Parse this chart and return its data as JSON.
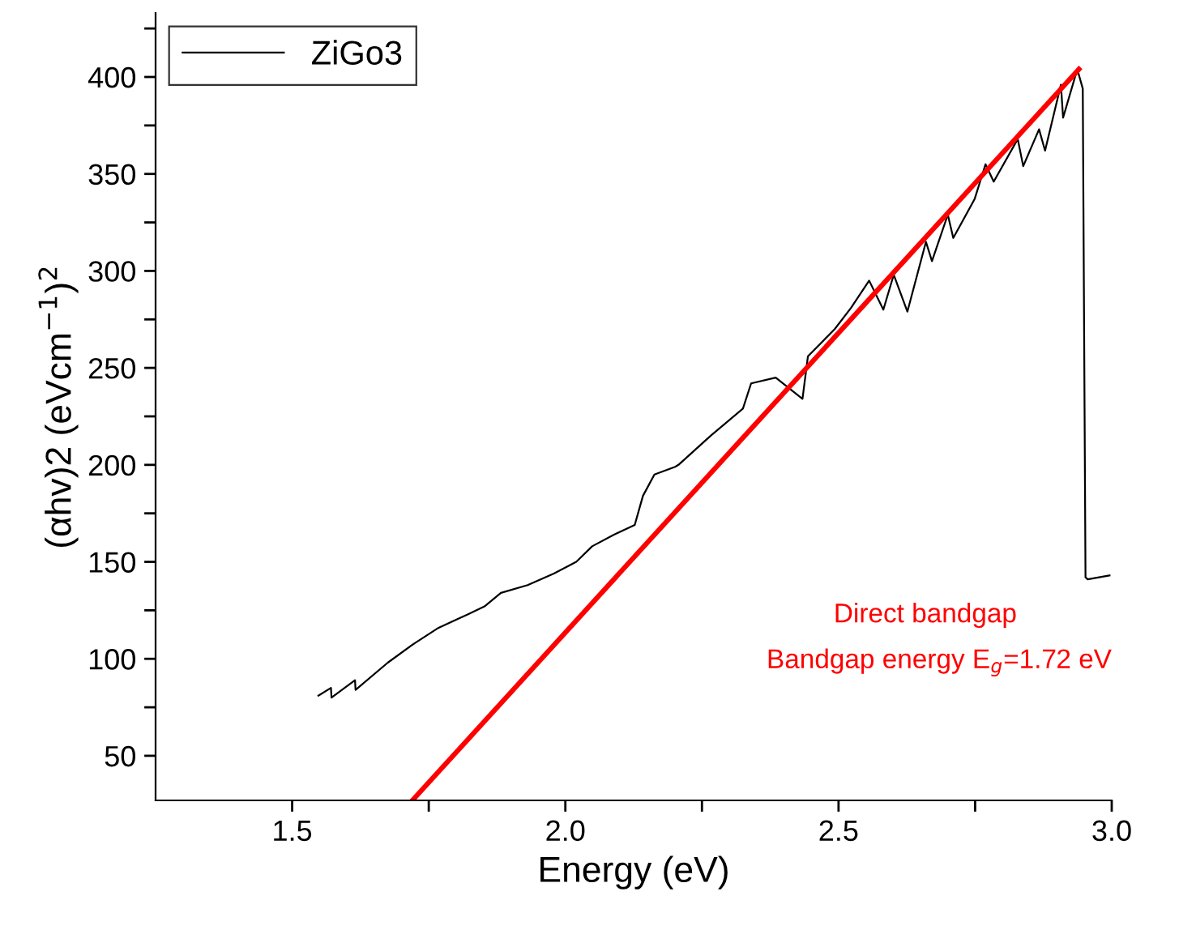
{
  "chart_data": {
    "type": "line",
    "xlabel": "Energy (eV)",
    "ylabel": "(αhv)2 (eVcm$^{−1}$)$^{2}$",
    "xlim": [
      1.25,
      3.0
    ],
    "ylim": [
      27,
      433
    ],
    "xticks": [
      1.5,
      {
        "value": 1.75,
        "label": null
      },
      {
        "value": 2,
        "label": "2.0"
      },
      {
        "value": 2.25,
        "label": null
      },
      2.5,
      {
        "value": 2.75,
        "label": null
      },
      {
        "value": 3,
        "label": "3.0"
      }
    ],
    "yticks": [
      50,
      {
        "value": 75,
        "label": null
      },
      100,
      {
        "value": 125,
        "label": null
      },
      150,
      {
        "value": 175,
        "label": null
      },
      200,
      {
        "value": 225,
        "label": null
      },
      250,
      {
        "value": 275,
        "label": null
      },
      300,
      {
        "value": 325,
        "label": null
      },
      350,
      {
        "value": 375,
        "label": null
      },
      400,
      {
        "value": 425,
        "label": null
      }
    ],
    "grid": false,
    "legend": "top left",
    "marker": "none",
    "line_style": "solid",
    "annotations": [
      "Direct bandgap",
      "Bandgap energy E$_{g}$=1.72 eV"
    ],
    "series": [
      {
        "name": "ZiGo3",
        "color": "#000000",
        "x": [
          1.548,
          1.571,
          1.572,
          1.615,
          1.616,
          1.675,
          1.724,
          1.768,
          1.822,
          1.852,
          1.882,
          1.931,
          1.979,
          2.02,
          2.049,
          2.089,
          2.127,
          2.142,
          2.163,
          2.201,
          2.207,
          2.266,
          2.325,
          2.34,
          2.385,
          2.434,
          2.444,
          2.493,
          2.523,
          2.556,
          2.582,
          2.601,
          2.626,
          2.66,
          2.671,
          2.7,
          2.71,
          2.749,
          2.769,
          2.784,
          2.828,
          2.838,
          2.867,
          2.878,
          2.907,
          2.911,
          2.937,
          2.947,
          2.952,
          2.956,
          2.996
        ],
        "values": [
          81,
          85,
          80,
          89,
          84,
          98,
          108,
          116,
          123,
          127,
          134,
          138,
          144,
          150,
          158,
          164,
          169,
          184,
          195,
          199,
          200,
          215,
          229,
          242,
          245,
          234,
          256,
          270,
          281,
          295,
          280,
          298,
          279,
          315,
          305,
          329,
          317,
          337,
          355,
          346,
          368,
          354,
          373,
          362,
          396,
          379,
          404,
          394,
          142,
          141,
          143
        ]
      },
      {
        "type": "line",
        "color": "#ff0000",
        "x": [
          1.72,
          2.94
        ],
        "values": [
          27,
          404
        ]
      }
    ]
  }
}
